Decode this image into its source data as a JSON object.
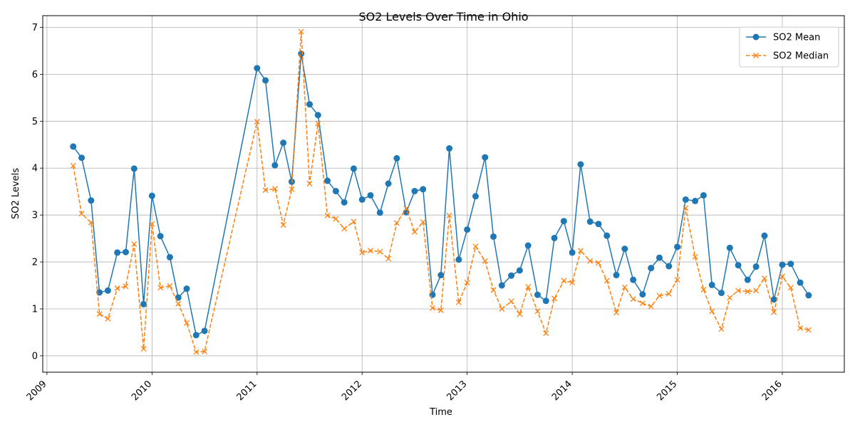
{
  "chart_data": {
    "type": "line",
    "title": "SO2 Levels Over Time in Ohio",
    "xlabel": "Time",
    "ylabel": "SO2 Levels",
    "xlim": [
      2008.96,
      2016.59
    ],
    "ylim": [
      -0.35,
      7.25
    ],
    "x_ticks": [
      2009,
      2010,
      2011,
      2012,
      2013,
      2014,
      2015,
      2016
    ],
    "x_tick_labels": [
      "2009",
      "2010",
      "2011",
      "2012",
      "2013",
      "2014",
      "2015",
      "2016"
    ],
    "y_ticks": [
      0,
      1,
      2,
      3,
      4,
      5,
      6,
      7
    ],
    "y_tick_labels": [
      "0",
      "1",
      "2",
      "3",
      "4",
      "5",
      "6",
      "7"
    ],
    "grid": true,
    "legend_position": "top-right",
    "colors": {
      "mean": "#1f77b4",
      "median": "#ff7f0e",
      "grid": "#b0b0b0"
    },
    "series": [
      {
        "name": "SO2 Mean",
        "marker": "circle",
        "linestyle": "solid",
        "x": [
          2009.25,
          2009.33,
          2009.42,
          2009.5,
          2009.58,
          2009.67,
          2009.75,
          2009.83,
          2009.92,
          2010.0,
          2010.08,
          2010.17,
          2010.25,
          2010.33,
          2010.42,
          2010.5,
          2011.0,
          2011.08,
          2011.17,
          2011.25,
          2011.33,
          2011.42,
          2011.5,
          2011.58,
          2011.67,
          2011.75,
          2011.83,
          2011.92,
          2012.0,
          2012.08,
          2012.17,
          2012.25,
          2012.33,
          2012.42,
          2012.5,
          2012.58,
          2012.67,
          2012.75,
          2012.83,
          2012.92,
          2013.0,
          2013.08,
          2013.17,
          2013.25,
          2013.33,
          2013.42,
          2013.5,
          2013.58,
          2013.67,
          2013.75,
          2013.83,
          2013.92,
          2014.0,
          2014.08,
          2014.17,
          2014.25,
          2014.33,
          2014.42,
          2014.5,
          2014.58,
          2014.67,
          2014.75,
          2014.83,
          2014.92,
          2015.0,
          2015.08,
          2015.17,
          2015.25,
          2015.33,
          2015.42,
          2015.5,
          2015.58,
          2015.67,
          2015.75,
          2015.83,
          2015.92,
          2016.0,
          2016.08,
          2016.17,
          2016.25
        ],
        "values": [
          4.46,
          4.22,
          3.31,
          1.35,
          1.39,
          2.2,
          2.21,
          3.99,
          1.1,
          3.41,
          2.55,
          2.1,
          1.24,
          1.43,
          0.44,
          0.53,
          6.13,
          5.87,
          4.06,
          4.54,
          3.71,
          6.44,
          5.36,
          5.13,
          3.73,
          3.51,
          3.27,
          3.99,
          3.33,
          3.42,
          3.05,
          3.67,
          4.21,
          3.06,
          3.51,
          3.55,
          1.3,
          1.72,
          4.42,
          2.05,
          2.69,
          3.4,
          4.23,
          2.54,
          1.5,
          1.71,
          1.82,
          2.35,
          1.3,
          1.17,
          2.51,
          2.87,
          2.2,
          4.08,
          2.86,
          2.81,
          2.56,
          1.72,
          2.28,
          1.62,
          1.31,
          1.87,
          2.09,
          1.91,
          2.32,
          3.33,
          3.3,
          3.42,
          1.51,
          1.34,
          2.3,
          1.93,
          1.62,
          1.9,
          2.56,
          1.2,
          1.94,
          1.96,
          1.56,
          1.29
        ]
      },
      {
        "name": "SO2 Median",
        "marker": "x",
        "linestyle": "dashed",
        "x": [
          2009.25,
          2009.33,
          2009.42,
          2009.5,
          2009.58,
          2009.67,
          2009.75,
          2009.83,
          2009.92,
          2010.0,
          2010.08,
          2010.17,
          2010.25,
          2010.33,
          2010.42,
          2010.5,
          2011.0,
          2011.08,
          2011.17,
          2011.25,
          2011.33,
          2011.42,
          2011.5,
          2011.58,
          2011.67,
          2011.75,
          2011.83,
          2011.92,
          2012.0,
          2012.08,
          2012.17,
          2012.25,
          2012.33,
          2012.42,
          2012.5,
          2012.58,
          2012.67,
          2012.75,
          2012.83,
          2012.92,
          2013.0,
          2013.08,
          2013.17,
          2013.25,
          2013.33,
          2013.42,
          2013.5,
          2013.58,
          2013.67,
          2013.75,
          2013.83,
          2013.92,
          2014.0,
          2014.08,
          2014.17,
          2014.25,
          2014.33,
          2014.42,
          2014.5,
          2014.58,
          2014.67,
          2014.75,
          2014.83,
          2014.92,
          2015.0,
          2015.08,
          2015.17,
          2015.25,
          2015.33,
          2015.42,
          2015.5,
          2015.58,
          2015.67,
          2015.75,
          2015.83,
          2015.92,
          2016.0,
          2016.08,
          2016.17,
          2016.25
        ],
        "values": [
          4.05,
          3.03,
          2.84,
          0.89,
          0.79,
          1.44,
          1.48,
          2.38,
          0.15,
          2.81,
          1.45,
          1.49,
          1.11,
          0.7,
          0.08,
          0.09,
          4.99,
          3.53,
          3.56,
          2.79,
          3.55,
          6.91,
          3.67,
          4.95,
          2.99,
          2.92,
          2.71,
          2.86,
          2.2,
          2.24,
          2.22,
          2.07,
          2.83,
          3.14,
          2.64,
          2.85,
          1.02,
          0.97,
          2.99,
          1.14,
          1.56,
          2.33,
          2.02,
          1.4,
          1.0,
          1.16,
          0.89,
          1.47,
          0.95,
          0.48,
          1.22,
          1.6,
          1.56,
          2.24,
          2.02,
          1.98,
          1.6,
          0.92,
          1.46,
          1.21,
          1.12,
          1.05,
          1.28,
          1.32,
          1.62,
          3.15,
          2.11,
          1.41,
          0.95,
          0.57,
          1.24,
          1.39,
          1.37,
          1.39,
          1.65,
          0.93,
          1.69,
          1.45,
          0.59,
          0.55
        ]
      }
    ]
  }
}
